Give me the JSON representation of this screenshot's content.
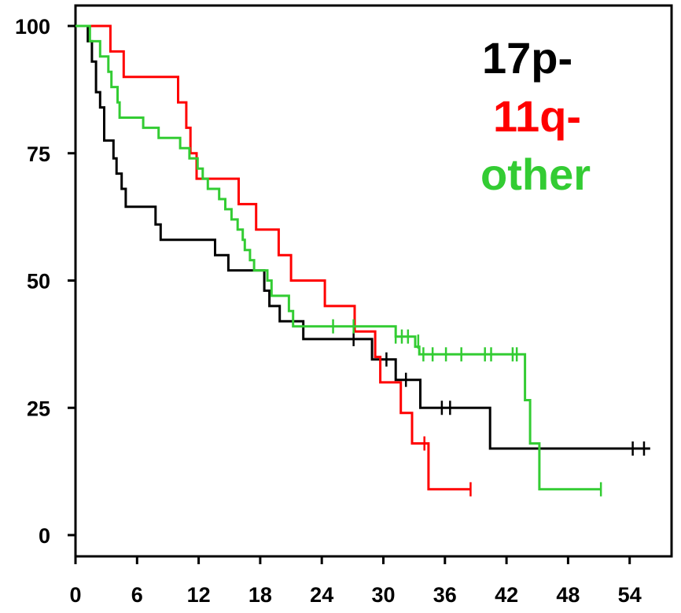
{
  "chart_data": {
    "type": "line",
    "title": "",
    "xlabel": "",
    "ylabel": "",
    "xlim": [
      0,
      58
    ],
    "ylim": [
      -2,
      102
    ],
    "grid": false,
    "legend_position": "top-right",
    "x_ticks": [
      {
        "value": 0,
        "label": "0"
      },
      {
        "value": 6,
        "label": "6"
      },
      {
        "value": 12,
        "label": "12"
      },
      {
        "value": 18,
        "label": "18"
      },
      {
        "value": 24,
        "label": "24"
      },
      {
        "value": 30,
        "label": "30"
      },
      {
        "value": 36,
        "label": "36"
      },
      {
        "value": 42,
        "label": "42"
      },
      {
        "value": 48,
        "label": "48"
      },
      {
        "value": 54,
        "label": "54"
      }
    ],
    "y_ticks": [
      {
        "value": 0,
        "label": "0"
      },
      {
        "value": 25,
        "label": "25"
      },
      {
        "value": 50,
        "label": "50"
      },
      {
        "value": 75,
        "label": "75"
      },
      {
        "value": 100,
        "label": "100"
      }
    ],
    "series": [
      {
        "name": "17p-",
        "color": "#000000",
        "steps": [
          [
            0,
            100
          ],
          [
            1.2,
            97
          ],
          [
            1.6,
            93
          ],
          [
            2.0,
            87
          ],
          [
            2.4,
            84
          ],
          [
            2.8,
            77.5
          ],
          [
            3.7,
            74
          ],
          [
            4.0,
            71
          ],
          [
            4.5,
            68
          ],
          [
            4.9,
            64.5
          ],
          [
            7.8,
            61
          ],
          [
            8.3,
            58
          ],
          [
            13.6,
            55
          ],
          [
            14.9,
            52
          ],
          [
            18.4,
            48
          ],
          [
            18.9,
            45
          ],
          [
            19.9,
            42
          ],
          [
            22.2,
            38.5
          ],
          [
            27.1,
            38.5
          ],
          [
            28.9,
            34.5
          ],
          [
            31.2,
            30.5
          ],
          [
            33.6,
            25
          ],
          [
            40.4,
            17
          ],
          [
            56,
            17
          ]
        ],
        "censored": [
          [
            27.1,
            38.5
          ],
          [
            30.3,
            34.5
          ],
          [
            32.2,
            30.5
          ],
          [
            35.7,
            25
          ],
          [
            36.5,
            25
          ],
          [
            54.3,
            17
          ],
          [
            55.4,
            17
          ]
        ]
      },
      {
        "name": "11q-",
        "color": "#ff0000",
        "steps": [
          [
            0,
            100
          ],
          [
            3.4,
            95
          ],
          [
            4.7,
            90
          ],
          [
            10.0,
            85
          ],
          [
            10.8,
            80
          ],
          [
            11.2,
            75
          ],
          [
            11.8,
            70
          ],
          [
            15.9,
            65
          ],
          [
            17.6,
            60
          ],
          [
            19.8,
            55
          ],
          [
            21.0,
            50
          ],
          [
            24.3,
            45
          ],
          [
            27.2,
            40
          ],
          [
            29.2,
            35
          ],
          [
            29.7,
            30
          ],
          [
            31.7,
            24
          ],
          [
            32.8,
            18
          ],
          [
            34.4,
            9
          ],
          [
            38.5,
            9
          ]
        ],
        "censored": [
          [
            34.0,
            18
          ],
          [
            38.5,
            9
          ]
        ]
      },
      {
        "name": "other",
        "color": "#33cc33",
        "steps": [
          [
            0,
            100
          ],
          [
            1.4,
            97
          ],
          [
            2.4,
            94
          ],
          [
            3.2,
            91
          ],
          [
            3.5,
            88
          ],
          [
            4.1,
            85
          ],
          [
            4.3,
            82
          ],
          [
            6.6,
            80
          ],
          [
            8.1,
            78
          ],
          [
            10.2,
            76
          ],
          [
            11.1,
            74
          ],
          [
            11.9,
            72
          ],
          [
            12.4,
            70
          ],
          [
            12.9,
            68
          ],
          [
            14.0,
            66
          ],
          [
            14.6,
            64
          ],
          [
            15.2,
            62
          ],
          [
            15.8,
            60
          ],
          [
            16.3,
            58
          ],
          [
            16.5,
            56
          ],
          [
            17.0,
            54
          ],
          [
            17.4,
            52
          ],
          [
            18.7,
            50
          ],
          [
            19.1,
            47
          ],
          [
            20.8,
            44
          ],
          [
            21.2,
            41
          ],
          [
            31.2,
            39
          ],
          [
            33.1,
            37
          ],
          [
            33.5,
            35.5
          ],
          [
            43.8,
            26.5
          ],
          [
            44.3,
            18
          ],
          [
            45.2,
            9
          ],
          [
            51.2,
            9
          ]
        ],
        "censored": [
          [
            25.1,
            41
          ],
          [
            27.1,
            41
          ],
          [
            31.2,
            39
          ],
          [
            31.8,
            39
          ],
          [
            32.4,
            39
          ],
          [
            33.4,
            38
          ],
          [
            33.9,
            35.5
          ],
          [
            34.8,
            35.5
          ],
          [
            36.1,
            35.5
          ],
          [
            37.6,
            35.5
          ],
          [
            39.9,
            35.5
          ],
          [
            40.5,
            35.5
          ],
          [
            42.6,
            35.5
          ],
          [
            43.0,
            35.5
          ],
          [
            51.2,
            9
          ]
        ]
      }
    ]
  }
}
